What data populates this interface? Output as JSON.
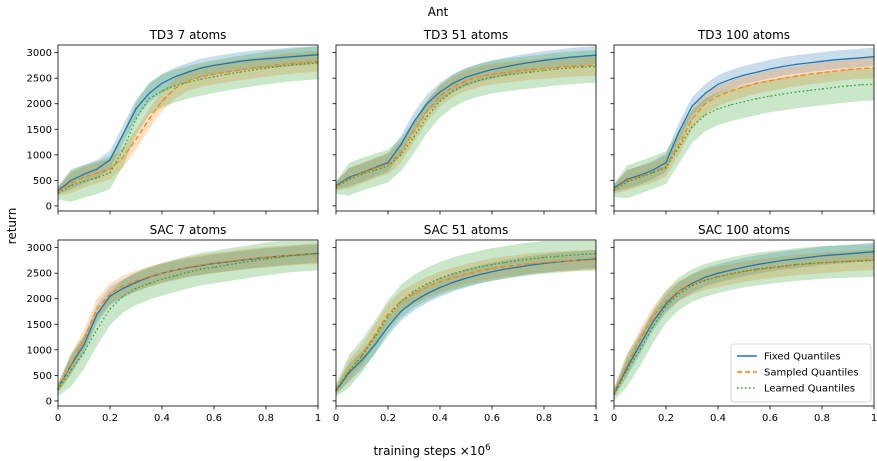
{
  "figure": {
    "title": "Ant",
    "ylabel": "return",
    "xlabel": "training steps ×10",
    "xlabel_exp": "6"
  },
  "legend": {
    "placement": "lower-right",
    "entries": [
      {
        "label": "Fixed Quantiles",
        "style": "solid",
        "color": "#1f77b4"
      },
      {
        "label": "Sampled Quantiles",
        "style": "dashed",
        "color": "#ff7f0e"
      },
      {
        "label": "Learned Quantiles",
        "style": "dotted",
        "color": "#2ca02c"
      }
    ]
  },
  "chart_data": [
    {
      "type": "line",
      "title": "TD3 7 atoms",
      "x": [
        0,
        0.05,
        0.1,
        0.15,
        0.2,
        0.25,
        0.3,
        0.35,
        0.4,
        0.45,
        0.5,
        0.55,
        0.6,
        0.65,
        0.7,
        0.75,
        0.8,
        0.85,
        0.9,
        0.95,
        1.0
      ],
      "xlim": [
        0,
        1
      ],
      "ylim": [
        -100,
        3150
      ],
      "xticks": [
        "0",
        "0.2",
        "0.4",
        "0.6",
        "0.8",
        "1"
      ],
      "yticks": [
        "0",
        "500",
        "1000",
        "1500",
        "2000",
        "2500",
        "3000"
      ],
      "series": [
        {
          "name": "Fixed Quantiles",
          "values": [
            300,
            500,
            620,
            720,
            900,
            1400,
            1900,
            2200,
            2400,
            2530,
            2620,
            2700,
            2750,
            2790,
            2830,
            2860,
            2880,
            2900,
            2920,
            2940,
            2960
          ]
        },
        {
          "name": "Sampled Quantiles",
          "values": [
            280,
            450,
            560,
            640,
            720,
            950,
            1300,
            1700,
            2050,
            2300,
            2450,
            2530,
            2580,
            2620,
            2660,
            2700,
            2730,
            2760,
            2790,
            2810,
            2830
          ]
        },
        {
          "name": "Learned Quantiles",
          "values": [
            250,
            400,
            480,
            550,
            650,
            1100,
            1700,
            2100,
            2250,
            2350,
            2420,
            2480,
            2530,
            2580,
            2620,
            2660,
            2700,
            2730,
            2760,
            2780,
            2800
          ]
        }
      ]
    },
    {
      "type": "line",
      "title": "TD3 51 atoms",
      "x": [
        0,
        0.05,
        0.1,
        0.15,
        0.2,
        0.25,
        0.3,
        0.35,
        0.4,
        0.45,
        0.5,
        0.55,
        0.6,
        0.65,
        0.7,
        0.75,
        0.8,
        0.85,
        0.9,
        0.95,
        1.0
      ],
      "xlim": [
        0,
        1
      ],
      "ylim": [
        -100,
        3150
      ],
      "xticks": [
        "0",
        "0.2",
        "0.4",
        "0.6",
        "0.8",
        "1"
      ],
      "yticks": [
        "0",
        "500",
        "1000",
        "1500",
        "2000",
        "2500",
        "3000"
      ],
      "series": [
        {
          "name": "Fixed Quantiles",
          "values": [
            400,
            560,
            650,
            750,
            850,
            1200,
            1650,
            2000,
            2230,
            2400,
            2520,
            2600,
            2670,
            2720,
            2770,
            2810,
            2850,
            2880,
            2910,
            2930,
            2950
          ]
        },
        {
          "name": "Sampled Quantiles",
          "values": [
            380,
            540,
            640,
            740,
            820,
            1050,
            1450,
            1850,
            2150,
            2330,
            2450,
            2530,
            2580,
            2610,
            2640,
            2670,
            2690,
            2710,
            2730,
            2740,
            2750
          ]
        },
        {
          "name": "Learned Quantiles",
          "values": [
            360,
            520,
            620,
            700,
            780,
            1000,
            1350,
            1750,
            2050,
            2250,
            2380,
            2460,
            2520,
            2560,
            2590,
            2620,
            2650,
            2680,
            2700,
            2720,
            2730
          ]
        }
      ]
    },
    {
      "type": "line",
      "title": "TD3 100 atoms",
      "x": [
        0,
        0.05,
        0.1,
        0.15,
        0.2,
        0.25,
        0.3,
        0.35,
        0.4,
        0.45,
        0.5,
        0.55,
        0.6,
        0.65,
        0.7,
        0.75,
        0.8,
        0.85,
        0.9,
        0.95,
        1.0
      ],
      "xlim": [
        0,
        1
      ],
      "ylim": [
        -100,
        3150
      ],
      "xticks": [
        "0",
        "0.2",
        "0.4",
        "0.6",
        "0.8",
        "1"
      ],
      "yticks": [
        "0",
        "500",
        "1000",
        "1500",
        "2000",
        "2500",
        "3000"
      ],
      "series": [
        {
          "name": "Fixed Quantiles",
          "values": [
            350,
            520,
            600,
            700,
            850,
            1450,
            1950,
            2200,
            2380,
            2480,
            2560,
            2620,
            2680,
            2730,
            2770,
            2800,
            2830,
            2860,
            2880,
            2900,
            2920
          ]
        },
        {
          "name": "Sampled Quantiles",
          "values": [
            320,
            500,
            580,
            660,
            780,
            1200,
            1700,
            2000,
            2150,
            2250,
            2330,
            2400,
            2450,
            2500,
            2540,
            2580,
            2610,
            2640,
            2670,
            2690,
            2700
          ]
        },
        {
          "name": "Learned Quantiles",
          "values": [
            300,
            470,
            560,
            650,
            750,
            1150,
            1550,
            1780,
            1900,
            1980,
            2040,
            2100,
            2150,
            2190,
            2230,
            2260,
            2290,
            2320,
            2350,
            2370,
            2380
          ]
        }
      ]
    },
    {
      "type": "line",
      "title": "SAC 7 atoms",
      "x": [
        0,
        0.05,
        0.1,
        0.15,
        0.2,
        0.25,
        0.3,
        0.35,
        0.4,
        0.45,
        0.5,
        0.55,
        0.6,
        0.65,
        0.7,
        0.75,
        0.8,
        0.85,
        0.9,
        0.95,
        1.0
      ],
      "xlim": [
        0,
        1
      ],
      "ylim": [
        -100,
        3150
      ],
      "xticks": [
        "0",
        "0.2",
        "0.4",
        "0.6",
        "0.8",
        "1"
      ],
      "yticks": [
        "0",
        "500",
        "1000",
        "1500",
        "2000",
        "2500",
        "3000"
      ],
      "series": [
        {
          "name": "Fixed Quantiles",
          "values": [
            250,
            700,
            1100,
            1700,
            2050,
            2200,
            2320,
            2420,
            2500,
            2560,
            2610,
            2650,
            2690,
            2720,
            2750,
            2780,
            2810,
            2830,
            2850,
            2870,
            2890
          ]
        },
        {
          "name": "Sampled Quantiles",
          "values": [
            250,
            720,
            1200,
            1800,
            2100,
            2250,
            2350,
            2430,
            2500,
            2560,
            2620,
            2660,
            2700,
            2730,
            2760,
            2790,
            2810,
            2830,
            2850,
            2870,
            2880
          ]
        },
        {
          "name": "Learned Quantiles",
          "values": [
            220,
            600,
            950,
            1400,
            1800,
            2050,
            2200,
            2300,
            2380,
            2450,
            2520,
            2580,
            2620,
            2660,
            2700,
            2740,
            2780,
            2810,
            2840,
            2860,
            2880
          ]
        }
      ]
    },
    {
      "type": "line",
      "title": "SAC 51 atoms",
      "x": [
        0,
        0.05,
        0.1,
        0.15,
        0.2,
        0.25,
        0.3,
        0.35,
        0.4,
        0.45,
        0.5,
        0.55,
        0.6,
        0.65,
        0.7,
        0.75,
        0.8,
        0.85,
        0.9,
        0.95,
        1.0
      ],
      "xlim": [
        0,
        1
      ],
      "ylim": [
        -100,
        3150
      ],
      "xticks": [
        "0",
        "0.2",
        "0.4",
        "0.6",
        "0.8",
        "1"
      ],
      "yticks": [
        "0",
        "500",
        "1000",
        "1500",
        "2000",
        "2500",
        "3000"
      ],
      "series": [
        {
          "name": "Fixed Quantiles",
          "values": [
            200,
            550,
            800,
            1100,
            1450,
            1750,
            1950,
            2100,
            2220,
            2320,
            2400,
            2470,
            2530,
            2580,
            2620,
            2660,
            2690,
            2720,
            2740,
            2760,
            2780
          ]
        },
        {
          "name": "Sampled Quantiles",
          "values": [
            220,
            600,
            900,
            1300,
            1700,
            1950,
            2100,
            2230,
            2330,
            2410,
            2480,
            2540,
            2590,
            2630,
            2660,
            2690,
            2710,
            2730,
            2740,
            2750,
            2760
          ]
        },
        {
          "name": "Learned Quantiles",
          "values": [
            210,
            580,
            880,
            1250,
            1650,
            1950,
            2150,
            2290,
            2400,
            2490,
            2560,
            2620,
            2670,
            2710,
            2750,
            2780,
            2810,
            2830,
            2850,
            2870,
            2880
          ]
        }
      ]
    },
    {
      "type": "line",
      "title": "SAC 100 atoms",
      "x": [
        0,
        0.05,
        0.1,
        0.15,
        0.2,
        0.25,
        0.3,
        0.35,
        0.4,
        0.45,
        0.5,
        0.55,
        0.6,
        0.65,
        0.7,
        0.75,
        0.8,
        0.85,
        0.9,
        0.95,
        1.0
      ],
      "xlim": [
        0,
        1
      ],
      "ylim": [
        -100,
        3150
      ],
      "xticks": [
        "0",
        "0.2",
        "0.4",
        "0.6",
        "0.8",
        "1"
      ],
      "yticks": [
        "0",
        "500",
        "1000",
        "1500",
        "2000",
        "2500",
        "3000"
      ],
      "series": [
        {
          "name": "Fixed Quantiles",
          "values": [
            150,
            650,
            1100,
            1550,
            1900,
            2150,
            2300,
            2420,
            2500,
            2560,
            2620,
            2670,
            2710,
            2750,
            2780,
            2810,
            2840,
            2860,
            2880,
            2900,
            2920
          ]
        },
        {
          "name": "Sampled Quantiles",
          "values": [
            150,
            700,
            1200,
            1650,
            1950,
            2150,
            2280,
            2370,
            2430,
            2480,
            2530,
            2570,
            2600,
            2630,
            2660,
            2680,
            2700,
            2720,
            2740,
            2750,
            2760
          ]
        },
        {
          "name": "Learned Quantiles",
          "values": [
            130,
            600,
            1000,
            1450,
            1850,
            2100,
            2260,
            2360,
            2430,
            2490,
            2540,
            2580,
            2610,
            2640,
            2670,
            2690,
            2710,
            2720,
            2730,
            2740,
            2750
          ]
        }
      ]
    }
  ]
}
